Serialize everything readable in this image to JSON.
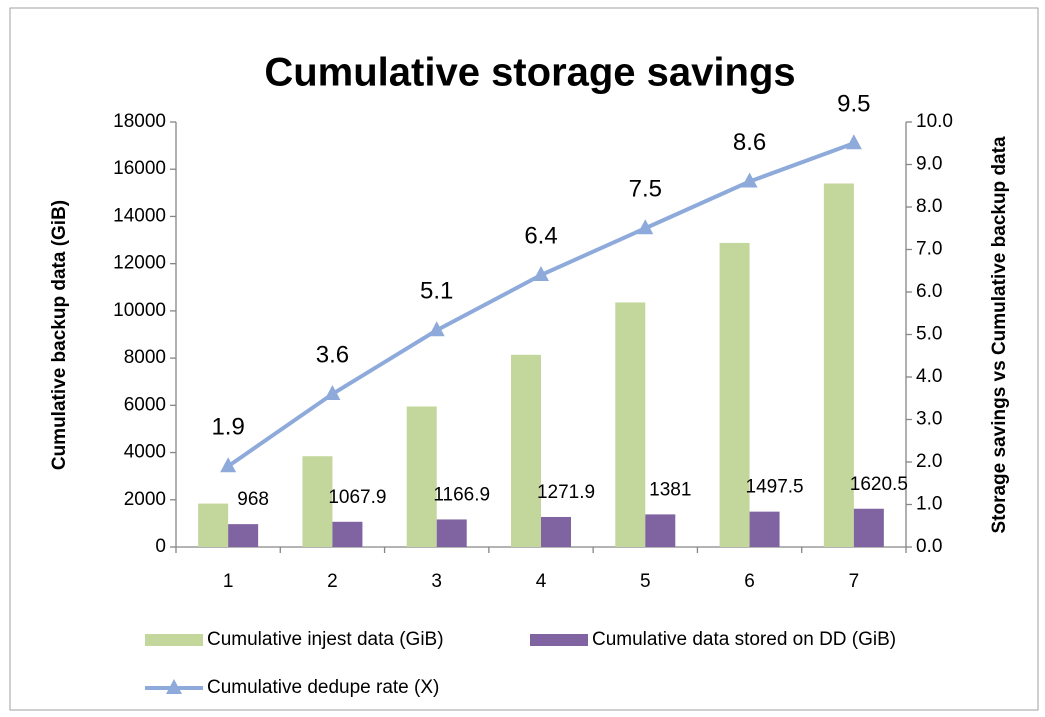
{
  "chart_data": {
    "type": "bar_line",
    "title": "Cumulative storage savings",
    "y_label": "Cumulative backup data (GiB)",
    "y2_label": "Storage savings vs Cumulative backup data",
    "categories": [
      "1",
      "2",
      "3",
      "4",
      "5",
      "6",
      "7"
    ],
    "series": [
      {
        "name": "Cumulative injest data (GiB)",
        "color": "#c3d69b",
        "type": "bar",
        "values": [
          1839,
          3844,
          5951,
          8140,
          10358,
          12879,
          15395
        ]
      },
      {
        "name": "Cumulative data stored on DD (GiB)",
        "color": "#8064a2",
        "type": "bar",
        "values": [
          968,
          1067.9,
          1166.9,
          1271.9,
          1381,
          1497.5,
          1620.5
        ],
        "data_labels": true
      },
      {
        "name": "Cumulative dedupe rate (X)",
        "color": "#8eaadb",
        "type": "line",
        "axis": "y2",
        "values": [
          1.9,
          3.6,
          5.1,
          6.4,
          7.5,
          8.6,
          9.5
        ],
        "data_labels": true
      }
    ],
    "ylim": [
      0,
      18000
    ],
    "yticks": [
      0,
      2000,
      4000,
      6000,
      8000,
      10000,
      12000,
      14000,
      16000,
      18000
    ],
    "y2lim": [
      0,
      10
    ],
    "y2ticks": [
      {
        "value": 0,
        "label": "0.0"
      },
      {
        "value": 1,
        "label": "1.0"
      },
      {
        "value": 2,
        "label": "2.0"
      },
      {
        "value": 3,
        "label": "3.0"
      },
      {
        "value": 4,
        "label": "4.0"
      },
      {
        "value": 5,
        "label": "5.0"
      },
      {
        "value": 6,
        "label": "6.0"
      },
      {
        "value": 7,
        "label": "7.0"
      },
      {
        "value": 8,
        "label": "8.0"
      },
      {
        "value": 9,
        "label": "9.0"
      },
      {
        "value": 10,
        "label": "10.0"
      }
    ],
    "grid": false,
    "legend": "bottom"
  }
}
